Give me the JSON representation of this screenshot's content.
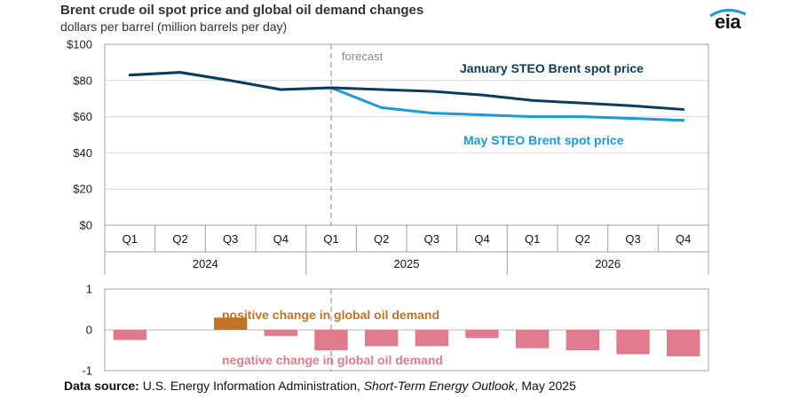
{
  "header": {
    "title": "Brent crude oil spot price and global oil demand changes",
    "subtitle": "dollars per barrel (million barrels per day)",
    "logo_text": "eia"
  },
  "footer": {
    "label": "Data source:",
    "org": "U.S. Energy Information Administration,",
    "publication": "Short-Term Energy Outlook",
    "date": ", May 2025"
  },
  "chart_data": [
    {
      "type": "line",
      "title": "Brent crude oil spot price",
      "ylabel": "dollars per barrel",
      "ylim": [
        0,
        100
      ],
      "yticks": [
        0,
        20,
        40,
        60,
        80,
        100
      ],
      "ytick_labels": [
        "$0",
        "$20",
        "$40",
        "$60",
        "$80",
        "$100"
      ],
      "categories": [
        "Q1",
        "Q2",
        "Q3",
        "Q4",
        "Q1",
        "Q2",
        "Q3",
        "Q4",
        "Q1",
        "Q2",
        "Q3",
        "Q4"
      ],
      "years": [
        {
          "label": "2024",
          "span": 4
        },
        {
          "label": "2025",
          "span": 4
        },
        {
          "label": "2026",
          "span": 4
        }
      ],
      "forecast_label": "forecast",
      "forecast_start_index": 4.5,
      "series": [
        {
          "name": "January STEO Brent spot price",
          "color": "#0b3c5d",
          "values": [
            83,
            84.5,
            80,
            75,
            76,
            75,
            74,
            72,
            69,
            67.5,
            66,
            64
          ]
        },
        {
          "name": "May STEO Brent spot price",
          "color": "#1a9ad9",
          "values": [
            83,
            84.5,
            80,
            75,
            76,
            65,
            62,
            61,
            60,
            60,
            59,
            58
          ]
        }
      ]
    },
    {
      "type": "bar",
      "title": "global oil demand changes",
      "ylabel": "million barrels per day",
      "ylim": [
        -1,
        1
      ],
      "yticks": [
        -1,
        0,
        1
      ],
      "ytick_labels": [
        "-1",
        "0",
        "1"
      ],
      "categories": [
        "2024 Q1",
        "2024 Q2",
        "2024 Q3",
        "2024 Q4",
        "2025 Q1",
        "2025 Q2",
        "2025 Q3",
        "2025 Q4",
        "2026 Q1",
        "2026 Q2",
        "2026 Q3",
        "2026 Q4"
      ],
      "values": [
        -0.25,
        0,
        0.3,
        -0.15,
        -0.5,
        -0.4,
        -0.4,
        -0.2,
        -0.45,
        -0.5,
        -0.6,
        -0.65
      ],
      "positive_color": "#c07427",
      "negative_color": "#e07b8b",
      "annotations": {
        "positive": "positive change in global oil demand",
        "negative": "negative change in global oil demand"
      }
    }
  ]
}
